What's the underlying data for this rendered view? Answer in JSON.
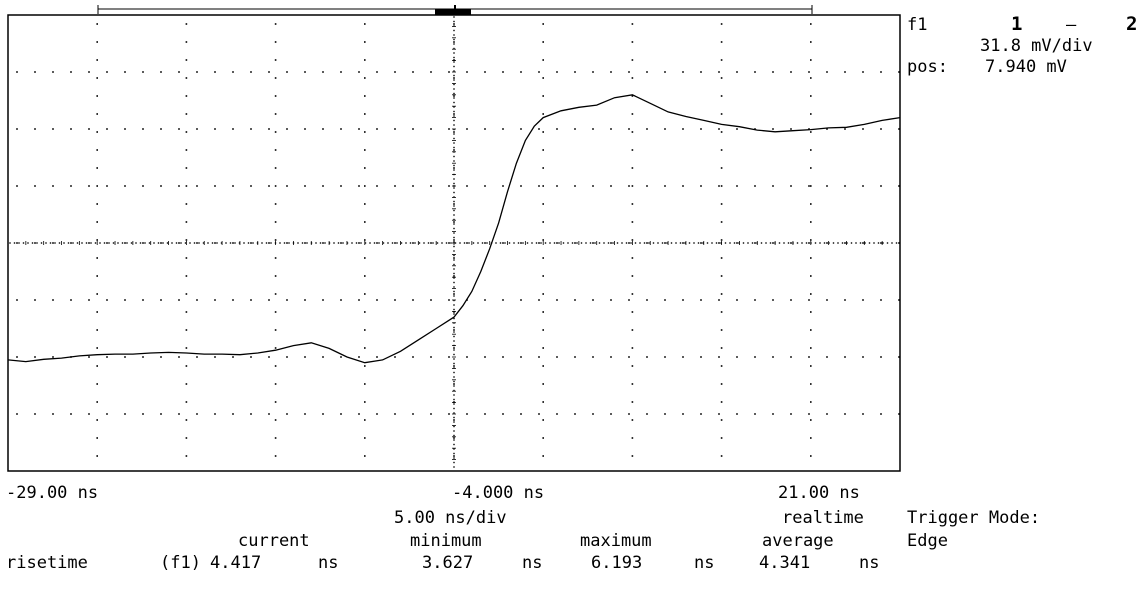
{
  "chart_data": {
    "type": "line",
    "xlim": [
      -29.0,
      21.0
    ],
    "ylim": [
      -4,
      4
    ],
    "x_divisions": 10,
    "y_divisions": 8,
    "grid": "dotted",
    "series": [
      {
        "points": [
          [
            -29.0,
            -2.05
          ],
          [
            -28.0,
            -2.08
          ],
          [
            -27.0,
            -2.04
          ],
          [
            -26.0,
            -2.02
          ],
          [
            -25.0,
            -1.98
          ],
          [
            -24.0,
            -1.96
          ],
          [
            -23.0,
            -1.95
          ],
          [
            -22.0,
            -1.95
          ],
          [
            -21.0,
            -1.93
          ],
          [
            -20.0,
            -1.92
          ],
          [
            -19.0,
            -1.93
          ],
          [
            -18.0,
            -1.95
          ],
          [
            -17.0,
            -1.95
          ],
          [
            -16.0,
            -1.96
          ],
          [
            -15.0,
            -1.93
          ],
          [
            -14.0,
            -1.88
          ],
          [
            -13.0,
            -1.8
          ],
          [
            -12.0,
            -1.75
          ],
          [
            -11.0,
            -1.85
          ],
          [
            -10.0,
            -2.0
          ],
          [
            -9.0,
            -2.1
          ],
          [
            -8.0,
            -2.05
          ],
          [
            -7.0,
            -1.9
          ],
          [
            -6.0,
            -1.7
          ],
          [
            -5.0,
            -1.5
          ],
          [
            -4.0,
            -1.3
          ],
          [
            -3.5,
            -1.1
          ],
          [
            -3.0,
            -0.85
          ],
          [
            -2.5,
            -0.5
          ],
          [
            -2.0,
            -0.1
          ],
          [
            -1.5,
            0.35
          ],
          [
            -1.0,
            0.9
          ],
          [
            -0.5,
            1.4
          ],
          [
            0.0,
            1.8
          ],
          [
            0.5,
            2.05
          ],
          [
            1.0,
            2.2
          ],
          [
            2.0,
            2.32
          ],
          [
            3.0,
            2.38
          ],
          [
            4.0,
            2.42
          ],
          [
            5.0,
            2.55
          ],
          [
            6.0,
            2.6
          ],
          [
            7.0,
            2.45
          ],
          [
            8.0,
            2.3
          ],
          [
            9.0,
            2.22
          ],
          [
            10.0,
            2.15
          ],
          [
            11.0,
            2.08
          ],
          [
            12.0,
            2.04
          ],
          [
            13.0,
            1.98
          ],
          [
            14.0,
            1.95
          ],
          [
            15.0,
            1.97
          ],
          [
            16.0,
            1.99
          ],
          [
            17.0,
            2.02
          ],
          [
            18.0,
            2.03
          ],
          [
            19.0,
            2.08
          ],
          [
            20.0,
            2.15
          ],
          [
            21.0,
            2.2
          ]
        ]
      }
    ]
  },
  "axis": {
    "x_left": "-29.00 ns",
    "x_center": "-4.000 ns",
    "x_right": "21.00 ns",
    "timebase": "5.00 ns/div",
    "acq_mode": "realtime"
  },
  "channel": {
    "trace_label": "f1",
    "source_a": "1",
    "op": "–",
    "source_b": "2",
    "vdiv": "31.8 mV/div",
    "pos_label": "pos:",
    "pos_value": "7.940 mV"
  },
  "trigger": {
    "mode_label": "Trigger Mode:",
    "mode_value": "Edge"
  },
  "measurement": {
    "headers": {
      "current": "current",
      "minimum": "minimum",
      "maximum": "maximum",
      "average": "average"
    },
    "row": {
      "name": "risetime",
      "source": "(f1)",
      "current": "4.417",
      "minimum": "3.627",
      "maximum": "6.193",
      "average": "4.341",
      "unit": "ns"
    }
  }
}
